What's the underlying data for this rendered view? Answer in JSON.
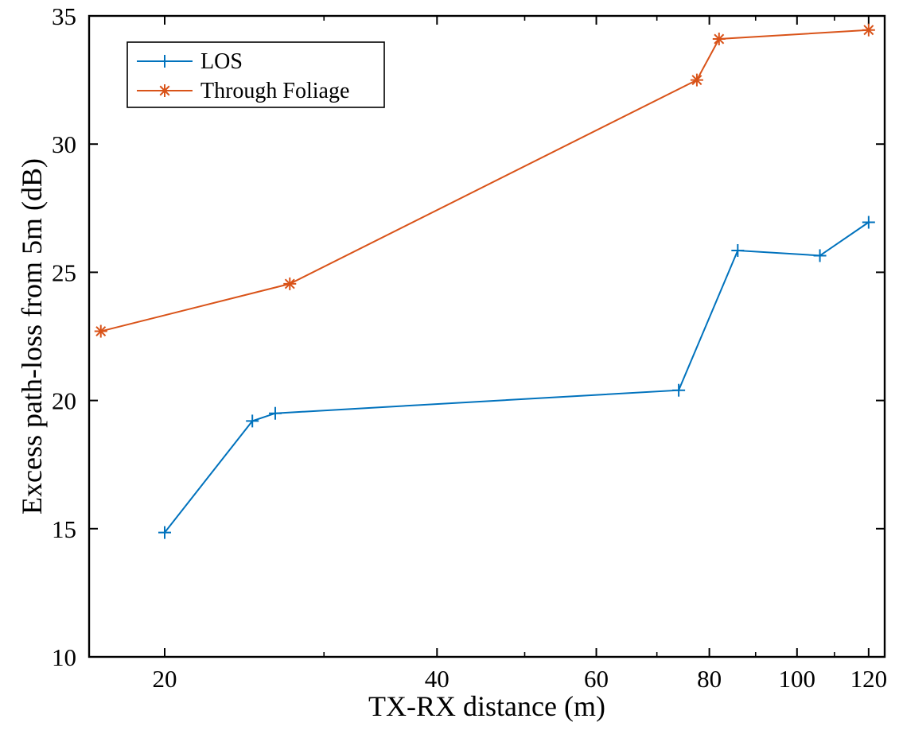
{
  "chart_data": {
    "type": "line",
    "title": "",
    "xlabel": "TX-RX distance (m)",
    "ylabel": "Excess path-loss from 5m (dB)",
    "xscale": "log",
    "xlim": [
      16.5,
      125
    ],
    "ylim": [
      10,
      35
    ],
    "xticks": [
      20,
      40,
      60,
      80,
      100,
      120
    ],
    "xtick_labels": [
      "20",
      "40",
      "60",
      "80",
      "100",
      "120"
    ],
    "yticks": [
      10,
      15,
      20,
      25,
      30,
      35
    ],
    "ytick_labels": [
      "10",
      "15",
      "20",
      "25",
      "30",
      "35"
    ],
    "grid": false,
    "legend_position": "top-left",
    "series": [
      {
        "name": "LOS",
        "color": "#0072BD",
        "marker": "plus",
        "x": [
          20,
          25,
          26.5,
          74,
          86,
          106,
          120
        ],
        "y": [
          14.85,
          19.2,
          19.5,
          20.4,
          25.85,
          25.65,
          26.95
        ]
      },
      {
        "name": "Through Foliage",
        "color": "#D95319",
        "marker": "asterisk",
        "x": [
          17,
          27.5,
          77.5,
          82,
          120
        ],
        "y": [
          22.7,
          24.55,
          32.5,
          34.1,
          34.45
        ]
      }
    ]
  }
}
